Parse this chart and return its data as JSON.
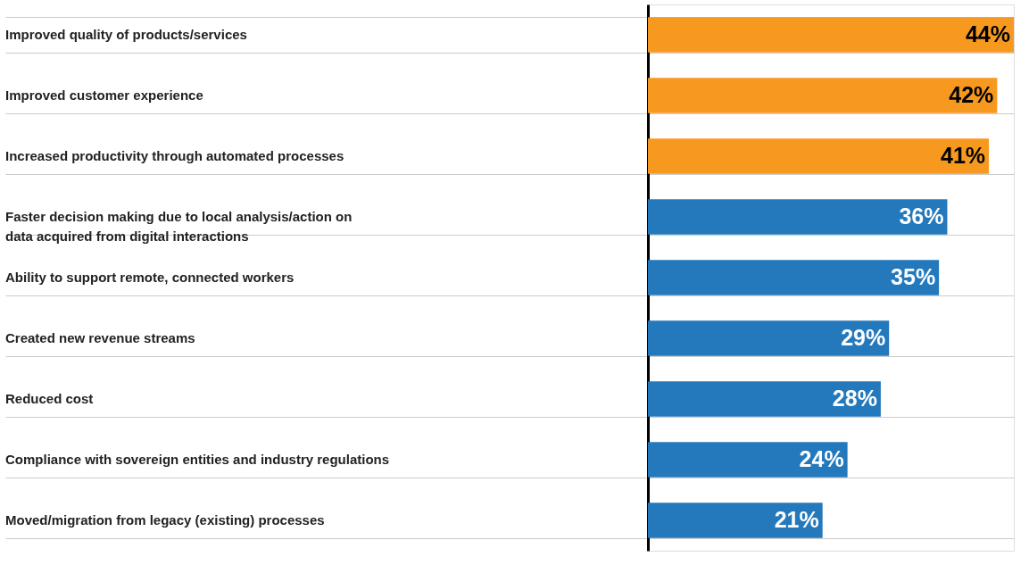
{
  "chart_data": {
    "type": "bar",
    "orientation": "horizontal",
    "categories": [
      "Improved quality of products/services",
      "Improved customer experience",
      "Increased productivity through automated processes",
      "Faster decision making due to local analysis/action on data acquired from digital interactions",
      "Ability to support remote, connected workers",
      "Created new revenue streams",
      "Reduced cost",
      "Compliance with sovereign entities and industry regulations",
      "Moved/migration from legacy (existing) processes"
    ],
    "values": [
      44,
      42,
      41,
      36,
      35,
      29,
      28,
      24,
      21
    ],
    "colors": [
      "#f7991f",
      "#f7991f",
      "#f7991f",
      "#2479bd",
      "#2479bd",
      "#2479bd",
      "#2479bd",
      "#2479bd",
      "#2479bd"
    ],
    "value_labels": [
      "44%",
      "42%",
      "41%",
      "36%",
      "35%",
      "29%",
      "28%",
      "24%",
      "21%"
    ],
    "grid": "y"
  }
}
